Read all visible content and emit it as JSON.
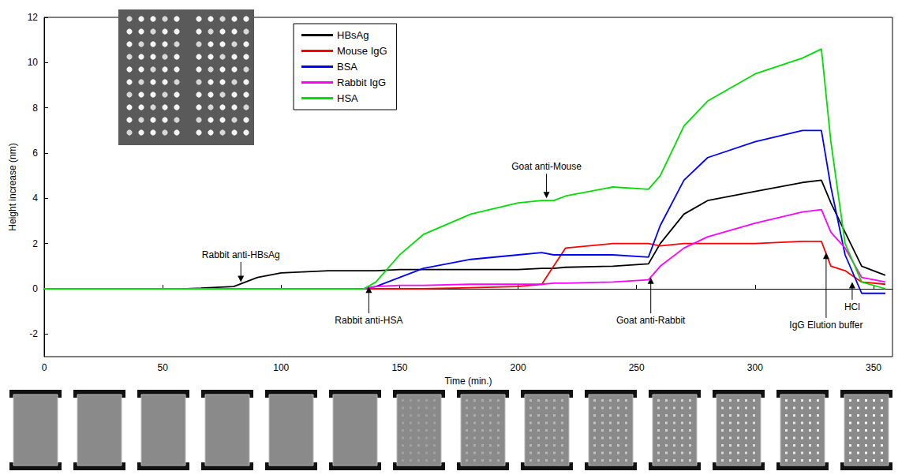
{
  "chart_data": {
    "type": "line",
    "x_label": "Time (min.)",
    "y_label": "Height increase (nm)",
    "xlim": [
      0,
      358
    ],
    "xticks": [
      0,
      50,
      100,
      150,
      200,
      250,
      300,
      350
    ],
    "ylim": [
      -3,
      12
    ],
    "yticks": [
      -2,
      0,
      2,
      4,
      6,
      8,
      10,
      12
    ],
    "grid": false,
    "legend": "upper left",
    "marker": "none",
    "x": [
      0,
      20,
      40,
      60,
      80,
      90,
      100,
      120,
      135,
      140,
      150,
      160,
      180,
      200,
      210,
      215,
      220,
      240,
      255,
      260,
      270,
      280,
      300,
      320,
      328,
      332,
      338,
      345,
      355
    ],
    "series": [
      {
        "name": "HBsAg",
        "color": "#000000",
        "values": [
          0,
          0,
          0,
          0,
          0.1,
          0.5,
          0.7,
          0.8,
          0.8,
          0.8,
          0.85,
          0.85,
          0.85,
          0.85,
          0.9,
          0.9,
          0.95,
          1.0,
          1.1,
          2.0,
          3.3,
          3.9,
          4.3,
          4.7,
          4.8,
          3.8,
          2.5,
          1.0,
          0.6
        ]
      },
      {
        "name": "Mouse IgG",
        "color": "#ff0000",
        "values": [
          0,
          0,
          0,
          0,
          0,
          0,
          0,
          0,
          0,
          0,
          0,
          0,
          0.05,
          0.1,
          0.2,
          1.0,
          1.8,
          2.0,
          2.0,
          1.9,
          2.0,
          2.0,
          2.0,
          2.1,
          2.1,
          1.0,
          0.8,
          0.3,
          0.2
        ]
      },
      {
        "name": "BSA",
        "color": "#0000ff",
        "values": [
          0,
          0,
          0,
          0,
          0,
          0,
          0,
          0,
          0,
          0.1,
          0.5,
          0.9,
          1.3,
          1.5,
          1.6,
          1.5,
          1.5,
          1.5,
          1.4,
          2.8,
          4.8,
          5.8,
          6.5,
          7.0,
          7.0,
          4.5,
          1.5,
          -0.2,
          -0.2
        ]
      },
      {
        "name": "Rabbit IgG",
        "color": "#ff00ff",
        "values": [
          0,
          0,
          0,
          0,
          0,
          0,
          0,
          0,
          0,
          0.1,
          0.15,
          0.15,
          0.2,
          0.2,
          0.2,
          0.25,
          0.25,
          0.3,
          0.4,
          1.0,
          1.8,
          2.3,
          2.9,
          3.4,
          3.5,
          2.5,
          1.8,
          0.5,
          0.3
        ]
      },
      {
        "name": "HSA",
        "color": "#00dd00",
        "values": [
          0,
          0,
          0,
          0,
          0,
          0,
          0,
          0,
          0,
          0.3,
          1.5,
          2.4,
          3.3,
          3.8,
          3.9,
          3.9,
          4.1,
          4.5,
          4.4,
          5.0,
          7.2,
          8.3,
          9.5,
          10.2,
          10.6,
          6.5,
          2.0,
          0.3,
          0.0
        ]
      }
    ],
    "annotations": [
      {
        "text": "Rabbit anti-HBsAg",
        "x": 83,
        "y": 0.3,
        "text_y": 1.5
      },
      {
        "text": "Goat anti-Mouse",
        "x": 212,
        "y": 4.0,
        "text_y": 5.4
      },
      {
        "text": "Rabbit anti-HSA",
        "x": 137,
        "y": 0.1,
        "text_y": -1.4
      },
      {
        "text": "Goat anti-Rabbit",
        "x": 256,
        "y": 0.5,
        "text_y": -1.4
      },
      {
        "text": "IgG Elution buffer",
        "x": 330,
        "y": 1.6,
        "text_y": -1.6
      },
      {
        "text": "HCl",
        "x": 341,
        "y": 0.3,
        "text_y": -0.8
      }
    ]
  }
}
